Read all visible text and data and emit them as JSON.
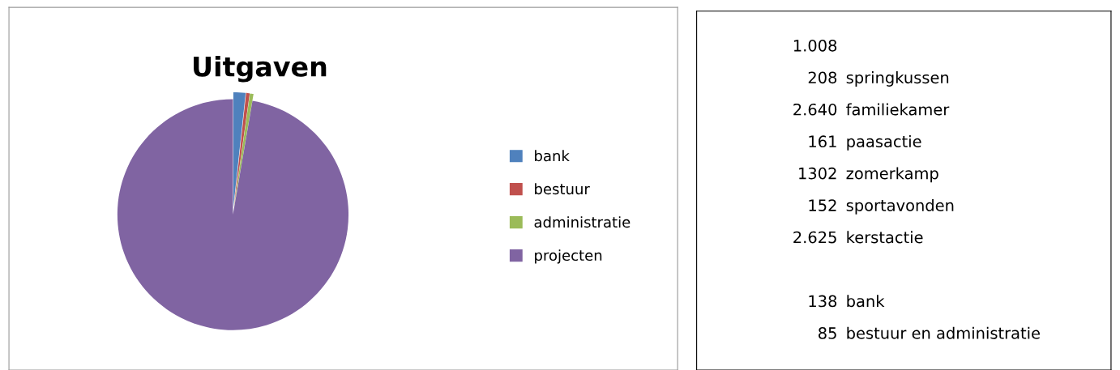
{
  "chart_data": [
    {
      "type": "pie",
      "title": "Uitgaven",
      "categories": [
        "bank",
        "bestuur",
        "administratie",
        "projecten"
      ],
      "values": [
        1.7,
        0.5,
        0.5,
        97.3
      ],
      "colors": [
        "#4f81bd",
        "#c0504d",
        "#9bbb59",
        "#8064a2"
      ],
      "legend": "right"
    },
    {
      "type": "other",
      "categories": [
        null,
        "springkussen",
        "familiekamer",
        "paasactie",
        "zomerkamp",
        "sportavonden",
        "kerstactie",
        null,
        "bank",
        "bestuur en administratie"
      ],
      "values": [
        1008,
        208,
        2640,
        161,
        1302,
        152,
        2625,
        null,
        138,
        85
      ],
      "value_labels": [
        "1.008",
        "208",
        "2.640",
        "161",
        "1302",
        "152",
        "2.625",
        null,
        "138",
        "85"
      ]
    }
  ]
}
